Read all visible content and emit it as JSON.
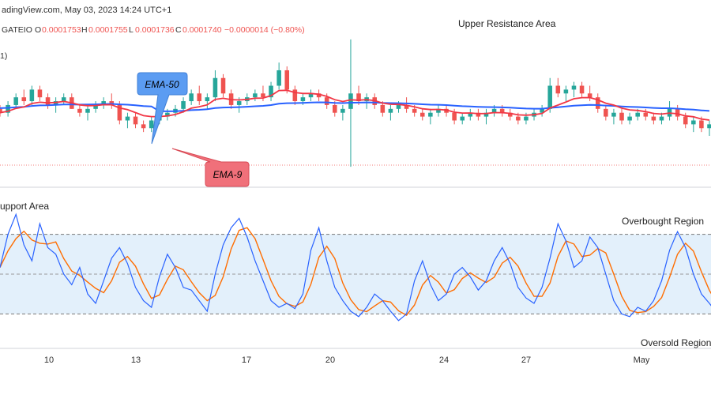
{
  "header": {
    "source_line": "adingView.com, May 03, 2023 14:24 UTC+1",
    "symbol": "GATEIO",
    "ohlc": {
      "o_label": "O",
      "o": "0.0001753",
      "h_label": "H",
      "h": "0.0001755",
      "l_label": "L",
      "l": "0.0001736",
      "c_label": "C",
      "c": "0.0001740",
      "change": "−0.0000014 (−0.80%)"
    },
    "indicator_tag": "1)"
  },
  "annotations": {
    "upper_resistance": "Upper Resistance Area",
    "support": "upport Area",
    "ema50": "EMA-50",
    "ema9": "EMA-9",
    "overbought": "Overbought Region",
    "oversold": "Oversold Region"
  },
  "colors": {
    "up": "#26a69a",
    "down": "#ef5350",
    "ema50": "#2962ff",
    "ema9": "#f23645",
    "stoch_k": "#2962ff",
    "stoch_d": "#ff6d00",
    "band": "#e3f0fb",
    "callout_blue": "#5b9cf2",
    "callout_red": "#f0707a"
  },
  "chart_data": [
    {
      "type": "candlestick",
      "x_ticks": [
        "10",
        "13",
        "17",
        "20",
        "24",
        "27",
        "May"
      ],
      "candles": [
        [
          100,
          101,
          98,
          99
        ],
        [
          99,
          102,
          98,
          101
        ],
        [
          101,
          104,
          100,
          103
        ],
        [
          103,
          105,
          101,
          102
        ],
        [
          102,
          106,
          101,
          105
        ],
        [
          105,
          106,
          102,
          103
        ],
        [
          103,
          104,
          100,
          101
        ],
        [
          101,
          103,
          99,
          102
        ],
        [
          102,
          104,
          101,
          103
        ],
        [
          103,
          104,
          100,
          100
        ],
        [
          100,
          101,
          98,
          99
        ],
        [
          99,
          101,
          97,
          100
        ],
        [
          100,
          102,
          99,
          101
        ],
        [
          101,
          103,
          100,
          102
        ],
        [
          102,
          104,
          100,
          101
        ],
        [
          101,
          102,
          96,
          97
        ],
        [
          97,
          99,
          95,
          98
        ],
        [
          98,
          99,
          95,
          96
        ],
        [
          96,
          97,
          94,
          95
        ],
        [
          95,
          98,
          94,
          97
        ],
        [
          97,
          99,
          96,
          98
        ],
        [
          98,
          100,
          97,
          99
        ],
        [
          99,
          101,
          98,
          100
        ],
        [
          100,
          103,
          99,
          102
        ],
        [
          102,
          105,
          101,
          104
        ],
        [
          104,
          106,
          101,
          102
        ],
        [
          102,
          104,
          100,
          103
        ],
        [
          103,
          110,
          102,
          108
        ],
        [
          108,
          109,
          103,
          104
        ],
        [
          104,
          105,
          100,
          101
        ],
        [
          101,
          103,
          99,
          102
        ],
        [
          102,
          104,
          101,
          103
        ],
        [
          103,
          105,
          102,
          104
        ],
        [
          104,
          106,
          102,
          103
        ],
        [
          103,
          107,
          102,
          106
        ],
        [
          106,
          112,
          105,
          110
        ],
        [
          110,
          111,
          104,
          105
        ],
        [
          105,
          106,
          101,
          102
        ],
        [
          102,
          104,
          101,
          103
        ],
        [
          103,
          105,
          102,
          104
        ],
        [
          104,
          105,
          102,
          103
        ],
        [
          103,
          104,
          100,
          101
        ],
        [
          101,
          102,
          98,
          99
        ],
        [
          99,
          101,
          97,
          100
        ],
        [
          100,
          118,
          85,
          104
        ],
        [
          104,
          106,
          101,
          102
        ],
        [
          102,
          104,
          100,
          103
        ],
        [
          103,
          104,
          100,
          101
        ],
        [
          101,
          102,
          98,
          99
        ],
        [
          99,
          101,
          97,
          100
        ],
        [
          100,
          102,
          99,
          101
        ],
        [
          101,
          103,
          99,
          100
        ],
        [
          100,
          101,
          98,
          99
        ],
        [
          99,
          100,
          97,
          98
        ],
        [
          98,
          100,
          96,
          99
        ],
        [
          99,
          101,
          98,
          100
        ],
        [
          100,
          101,
          98,
          99
        ],
        [
          99,
          100,
          96,
          97
        ],
        [
          97,
          99,
          96,
          98
        ],
        [
          98,
          100,
          97,
          99
        ],
        [
          99,
          100,
          97,
          98
        ],
        [
          98,
          100,
          96,
          99
        ],
        [
          99,
          101,
          98,
          100
        ],
        [
          100,
          101,
          98,
          99
        ],
        [
          99,
          100,
          97,
          98
        ],
        [
          98,
          99,
          96,
          97
        ],
        [
          97,
          99,
          96,
          98
        ],
        [
          98,
          100,
          97,
          99
        ],
        [
          99,
          101,
          98,
          100
        ],
        [
          100,
          108,
          99,
          106
        ],
        [
          106,
          108,
          103,
          104
        ],
        [
          104,
          106,
          102,
          105
        ],
        [
          105,
          107,
          103,
          106
        ],
        [
          106,
          107,
          103,
          104
        ],
        [
          104,
          106,
          102,
          103
        ],
        [
          103,
          104,
          99,
          100
        ],
        [
          100,
          101,
          97,
          98
        ],
        [
          98,
          100,
          96,
          99
        ],
        [
          99,
          100,
          96,
          97
        ],
        [
          97,
          99,
          96,
          98
        ],
        [
          98,
          100,
          97,
          99
        ],
        [
          99,
          100,
          97,
          98
        ],
        [
          98,
          99,
          96,
          97
        ],
        [
          97,
          99,
          96,
          98
        ],
        [
          98,
          102,
          97,
          100
        ],
        [
          100,
          101,
          97,
          98
        ],
        [
          98,
          99,
          95,
          96
        ],
        [
          96,
          98,
          94,
          97
        ],
        [
          97,
          98,
          94,
          95
        ],
        [
          95,
          97,
          93,
          96
        ]
      ]
    },
    {
      "type": "line",
      "series": [
        {
          "name": "EMA-50",
          "values": []
        },
        {
          "name": "EMA-9",
          "values": []
        }
      ]
    },
    {
      "type": "line",
      "ylim": [
        0,
        100
      ],
      "levels": [
        80,
        50,
        20
      ],
      "series": [
        {
          "values": [
            55,
            80,
            95,
            72,
            60,
            88,
            70,
            65,
            50,
            42,
            55,
            35,
            28,
            45,
            62,
            70,
            58,
            40,
            30,
            25,
            48,
            65,
            55,
            40,
            38,
            30,
            22,
            50,
            72,
            85,
            92,
            78,
            60,
            45,
            30,
            25,
            28,
            24,
            35,
            68,
            85,
            60,
            40,
            30,
            22,
            18,
            25,
            35,
            30,
            22,
            15,
            20,
            45,
            60,
            42,
            30,
            35,
            50,
            55,
            48,
            38,
            45,
            60,
            70,
            58,
            40,
            32,
            28,
            40,
            62,
            88,
            75,
            55,
            60,
            78,
            70,
            50,
            30,
            20,
            18,
            25,
            22,
            30,
            45,
            68,
            82,
            70,
            50,
            35,
            28,
            20,
            15,
            18,
            22,
            16
          ]
        },
        {
          "values": []
        }
      ]
    }
  ]
}
